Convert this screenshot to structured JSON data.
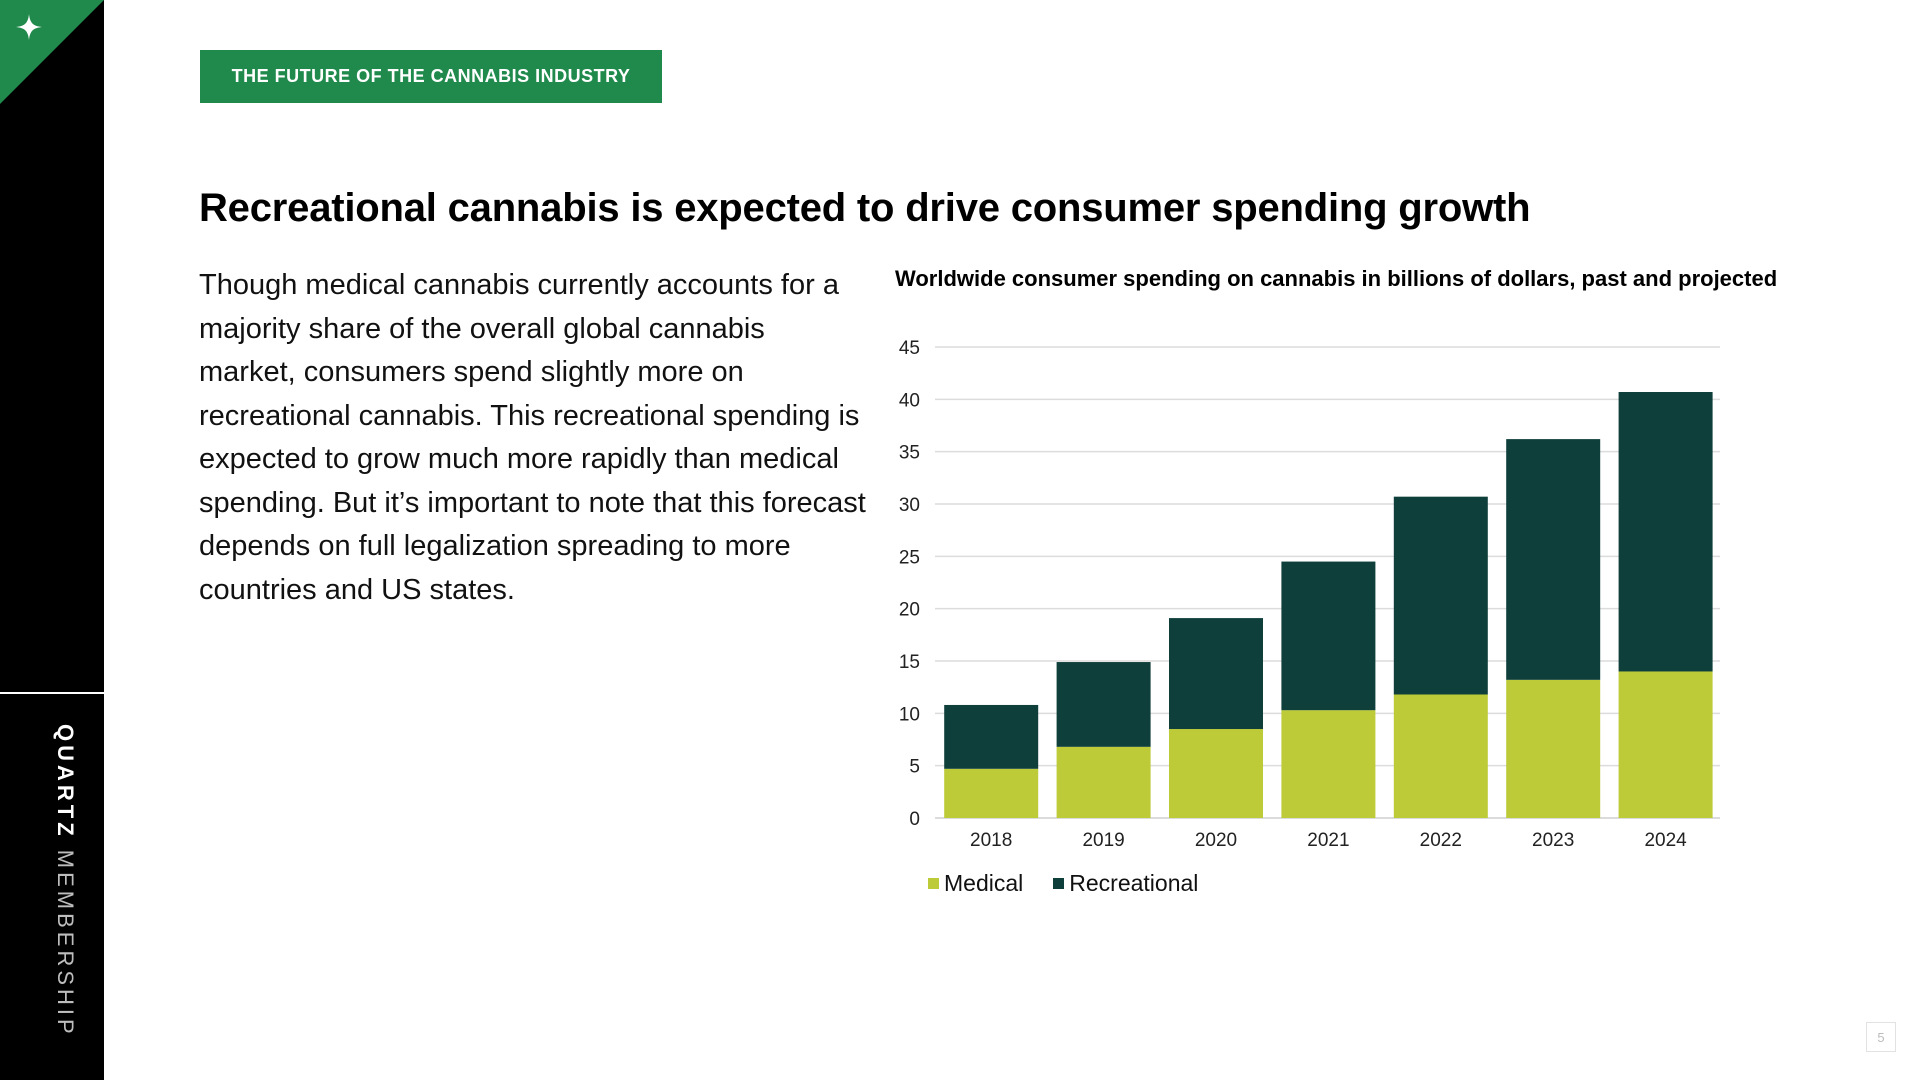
{
  "brand": {
    "primary": "QUARTZ",
    "secondary": "MEMBERSHIP",
    "icon": "sparkle-icon"
  },
  "banner": {
    "label": "THE FUTURE OF THE CANNABIS INDUSTRY"
  },
  "headline": "Recreational cannabis is expected to drive consumer spending growth",
  "body": "Though medical cannabis currently accounts for a majority share of the overall global cannabis market, consumers spend slightly more on recreational cannabis. This recreational spending is expected to grow much more rapidly than medical spending. But it’s important to note that this forecast depends on full legalization spreading to more countries and US states.",
  "page_number": "5",
  "colors": {
    "accent": "#1f8a4c",
    "medical": "#bccb37",
    "recreational": "#0f3f3b",
    "sidebar": "#000000"
  },
  "chart_data": {
    "type": "bar",
    "stacked": true,
    "title": "Worldwide consumer spending on cannabis in billions of dollars, past and projected",
    "xlabel": "",
    "ylabel": "",
    "categories": [
      "2018",
      "2019",
      "2020",
      "2021",
      "2022",
      "2023",
      "2024"
    ],
    "series": [
      {
        "name": "Medical",
        "color": "#bccb37",
        "values": [
          4.7,
          6.8,
          8.5,
          10.3,
          11.8,
          13.2,
          14.0
        ]
      },
      {
        "name": "Recreational",
        "color": "#0f3f3b",
        "values": [
          6.1,
          8.1,
          10.6,
          14.2,
          18.9,
          23.0,
          26.7
        ]
      }
    ],
    "ylim": [
      0,
      45
    ],
    "yticks": [
      0,
      5,
      10,
      15,
      20,
      25,
      30,
      35,
      40,
      45
    ],
    "grid": true,
    "legend": "bottom-left"
  }
}
